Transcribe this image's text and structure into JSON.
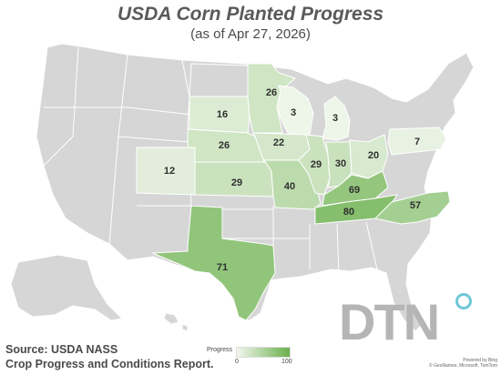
{
  "header": {
    "title": "USDA Corn Planted Progress",
    "subtitle": "(as of Apr 27, 2026)"
  },
  "source": {
    "line1": "Source: USDA NASS",
    "line2": "Crop Progress and Conditions Report."
  },
  "legend": {
    "title": "Progress",
    "min": "0",
    "max": "100",
    "color_low": "#f2f7ee",
    "color_high": "#6ab04c"
  },
  "branding": {
    "logo_text": "DTN",
    "credit_line1": "Powered by Bing",
    "credit_line2": "© GeoNames, Microsoft, TomTom"
  },
  "colors": {
    "no_data": "#d6d6d6",
    "border": "#ffffff",
    "logo_accent": "#6fc7d6"
  },
  "states": [
    {
      "name": "SD",
      "value": 16
    },
    {
      "name": "ND",
      "value": null
    },
    {
      "name": "MN",
      "value": 26
    },
    {
      "name": "WI",
      "value": 3
    },
    {
      "name": "MI",
      "value": 3
    },
    {
      "name": "NE",
      "value": 26
    },
    {
      "name": "IA",
      "value": 22
    },
    {
      "name": "CO",
      "value": 12
    },
    {
      "name": "KS",
      "value": 29
    },
    {
      "name": "MO",
      "value": 40
    },
    {
      "name": "IL",
      "value": 29
    },
    {
      "name": "IN",
      "value": 30
    },
    {
      "name": "OH",
      "value": 20
    },
    {
      "name": "PA",
      "value": 7
    },
    {
      "name": "KY",
      "value": 69
    },
    {
      "name": "TN",
      "value": 80
    },
    {
      "name": "NC",
      "value": 57
    },
    {
      "name": "TX",
      "value": 71
    }
  ]
}
